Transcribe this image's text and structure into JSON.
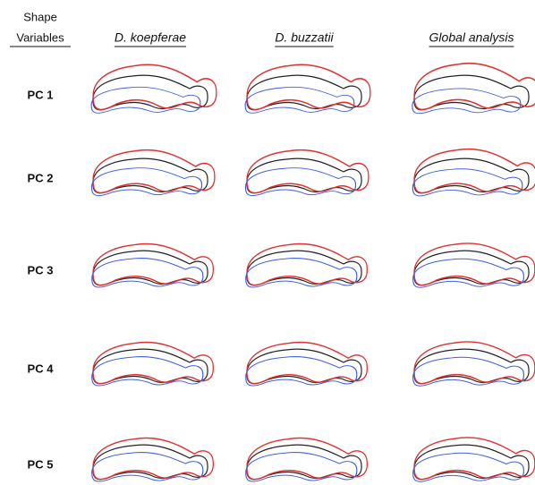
{
  "header": {
    "corner": [
      "Shape",
      "Variables"
    ],
    "columns": [
      "D. koepferae",
      "D. buzzatii",
      "Global analysis"
    ]
  },
  "rows": [
    "PC 1",
    "PC 2",
    "PC 3",
    "PC 4",
    "PC 5"
  ]
}
